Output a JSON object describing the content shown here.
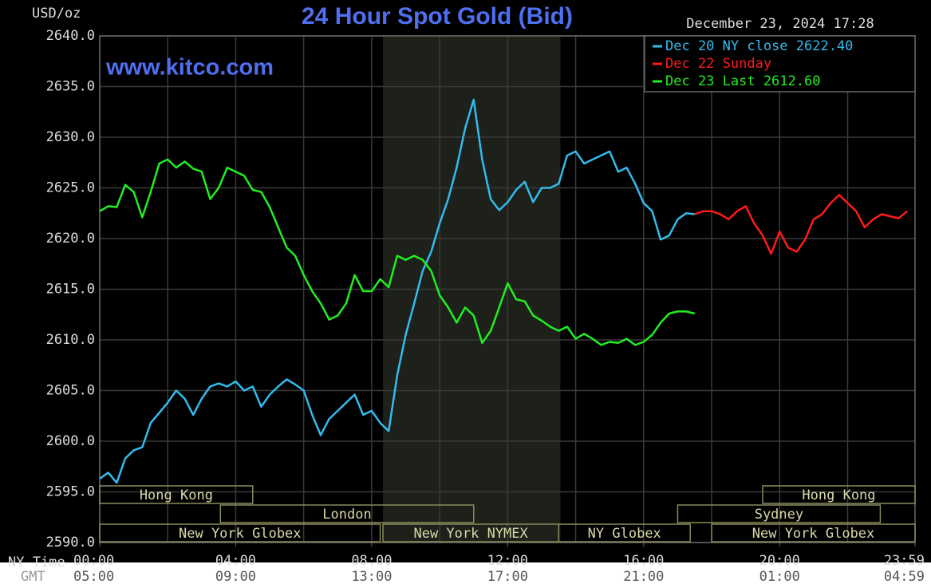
{
  "chart_data": {
    "type": "line",
    "title": "24 Hour Spot Gold (Bid)",
    "y_label": "USD/oz",
    "watermark": "www.kitco.com",
    "timestamp": "December 23, 2024 17:28",
    "x_label": "NY Time",
    "x2_label": "GMT",
    "xlim": [
      0,
      23.983
    ],
    "ylim": [
      2590,
      2640
    ],
    "yticks": [
      {
        "value": 2590,
        "label": "2590.0"
      },
      {
        "value": 2595,
        "label": "2595.0"
      },
      {
        "value": 2600,
        "label": "2600.0"
      },
      {
        "value": 2605,
        "label": "2605.0"
      },
      {
        "value": 2610,
        "label": "2610.0"
      },
      {
        "value": 2615,
        "label": "2615.0"
      },
      {
        "value": 2620,
        "label": "2620.0"
      },
      {
        "value": 2625,
        "label": "2625.0"
      },
      {
        "value": 2630,
        "label": "2630.0"
      },
      {
        "value": 2635,
        "label": "2635.0"
      },
      {
        "value": 2640,
        "label": "2640.0"
      }
    ],
    "xticks": [
      {
        "value": 0,
        "label": "00:00"
      },
      {
        "value": 4,
        "label": "04:00"
      },
      {
        "value": 8,
        "label": "08:00"
      },
      {
        "value": 12,
        "label": "12:00"
      },
      {
        "value": 16,
        "label": "16:00"
      },
      {
        "value": 20,
        "label": "20:00"
      },
      {
        "value": 23.983,
        "label": "23:59"
      }
    ],
    "x2_labels": [
      "05:00",
      "09:00",
      "13:00",
      "17:00",
      "21:00",
      "01:00",
      "04:59"
    ],
    "xgrid": [
      0,
      2,
      4,
      6,
      8,
      10,
      12,
      14,
      16,
      18,
      20,
      22
    ],
    "grid": true,
    "shaded": [
      8.333,
      13.55
    ],
    "session_rows": [
      [
        {
          "label": "Hong Kong",
          "start": 0,
          "end": 4.5
        },
        {
          "label": "Hong Kong",
          "start": 19.5,
          "end": 23.983
        }
      ],
      [
        {
          "label": "London",
          "start": 3.55,
          "end": 11
        },
        {
          "label": "Sydney",
          "start": 17,
          "end": 22.96
        }
      ],
      [
        {
          "label": "New York Globex",
          "start": 0,
          "end": 8.25
        },
        {
          "label": "New York NYMEX",
          "start": 8.33,
          "end": 13.5
        },
        {
          "label": "NY Globex",
          "start": 13.5,
          "end": 17.37
        },
        {
          "label": "New York Globex",
          "start": 18,
          "end": 23.983
        }
      ]
    ],
    "x": [
      0,
      0.25,
      0.5,
      0.75,
      1,
      1.25,
      1.5,
      1.75,
      2,
      2.25,
      2.5,
      2.75,
      3,
      3.25,
      3.5,
      3.75,
      4,
      4.25,
      4.5,
      4.75,
      5,
      5.25,
      5.5,
      5.75,
      6,
      6.25,
      6.5,
      6.75,
      7,
      7.25,
      7.5,
      7.75,
      8,
      8.25,
      8.5,
      8.75,
      9,
      9.25,
      9.5,
      9.75,
      10,
      10.25,
      10.5,
      10.75,
      11,
      11.25,
      11.5,
      11.75,
      12,
      12.25,
      12.5,
      12.75,
      13,
      13.25,
      13.5,
      13.75,
      14,
      14.25,
      14.5,
      14.75,
      15,
      15.25,
      15.5,
      15.75,
      16,
      16.25,
      16.5,
      16.75,
      17,
      17.25,
      17.5,
      17.75,
      18,
      18.25,
      18.5,
      18.75,
      19,
      19.25,
      19.5,
      19.75,
      20,
      20.25,
      20.5,
      20.75,
      21,
      21.25,
      21.5,
      21.75,
      22,
      22.25,
      22.5,
      22.75,
      23,
      23.25,
      23.5,
      23.75
    ],
    "series": [
      {
        "name": "Dec 20 NY close 2622.40",
        "color": "#33bbee",
        "values": [
          2596.3,
          2596.9,
          2595.9,
          2598.3,
          2599.1,
          2599.4,
          2601.8,
          2602.8,
          2603.8,
          2605.0,
          2604.2,
          2602.6,
          2604.2,
          2605.4,
          2605.7,
          2605.4,
          2605.9,
          2605.0,
          2605.4,
          2603.4,
          2604.6,
          2605.4,
          2606.1,
          2605.6,
          2605.0,
          2602.6,
          2600.6,
          2602.2,
          2603.0,
          2603.8,
          2604.6,
          2602.6,
          2603.0,
          2601.8,
          2601.0,
          2606.5,
          2610.5,
          2613.6,
          2616.8,
          2618.7,
          2621.5,
          2623.9,
          2627.0,
          2630.9,
          2633.7,
          2627.8,
          2623.9,
          2622.8,
          2623.6,
          2624.8,
          2625.6,
          2623.6,
          2625.0,
          2625.0,
          2625.4,
          2628.2,
          2628.6,
          2627.4,
          2627.8,
          2628.2,
          2628.6,
          2626.6,
          2627.0,
          2625.4,
          2623.5,
          2622.7,
          2619.9,
          2620.3,
          2621.9,
          2622.5,
          2622.4,
          null,
          null,
          null,
          null,
          null,
          null,
          null,
          null,
          null,
          null,
          null,
          null,
          null,
          null,
          null,
          null,
          null,
          null,
          null,
          null,
          null,
          null,
          null,
          null,
          null
        ]
      },
      {
        "name": "Dec 22 Sunday",
        "color": "#ff1a1a",
        "values": [
          null,
          null,
          null,
          null,
          null,
          null,
          null,
          null,
          null,
          null,
          null,
          null,
          null,
          null,
          null,
          null,
          null,
          null,
          null,
          null,
          null,
          null,
          null,
          null,
          null,
          null,
          null,
          null,
          null,
          null,
          null,
          null,
          null,
          null,
          null,
          null,
          null,
          null,
          null,
          null,
          null,
          null,
          null,
          null,
          null,
          null,
          null,
          null,
          null,
          null,
          null,
          null,
          null,
          null,
          null,
          null,
          null,
          null,
          null,
          null,
          null,
          null,
          null,
          null,
          null,
          null,
          null,
          null,
          null,
          null,
          2622.4,
          2622.7,
          2622.7,
          2622.4,
          2621.9,
          2622.7,
          2623.2,
          2621.5,
          2620.3,
          2618.5,
          2620.7,
          2619.1,
          2618.7,
          2619.9,
          2621.9,
          2622.4,
          2623.5,
          2624.3,
          2623.5,
          2622.7,
          2621.1,
          2621.9,
          2622.4,
          2622.2,
          2622.0,
          2622.7
        ]
      },
      {
        "name": "Dec 23 Last 2612.60",
        "color": "#22ee22",
        "values": [
          2622.7,
          2623.2,
          2623.1,
          2625.3,
          2624.6,
          2622.1,
          2624.6,
          2627.4,
          2627.8,
          2627.0,
          2627.6,
          2626.9,
          2626.6,
          2623.9,
          2625.0,
          2627.0,
          2626.6,
          2626.2,
          2624.8,
          2624.6,
          2623.1,
          2621.1,
          2619.1,
          2618.3,
          2616.4,
          2614.8,
          2613.6,
          2612.0,
          2612.4,
          2613.6,
          2616.4,
          2614.8,
          2614.8,
          2616.0,
          2615.2,
          2618.3,
          2617.9,
          2618.3,
          2617.9,
          2616.8,
          2614.4,
          2613.2,
          2611.7,
          2613.2,
          2612.4,
          2609.7,
          2610.9,
          2613.2,
          2615.6,
          2614.0,
          2613.8,
          2612.4,
          2611.9,
          2611.3,
          2610.9,
          2611.3,
          2610.1,
          2610.6,
          2610.1,
          2609.5,
          2609.8,
          2609.7,
          2610.1,
          2609.5,
          2609.8,
          2610.5,
          2611.7,
          2612.6,
          2612.8,
          2612.8,
          2612.6,
          null,
          null,
          null,
          null,
          null,
          null,
          null,
          null,
          null,
          null,
          null,
          null,
          null,
          null,
          null,
          null,
          null,
          null,
          null,
          null,
          null,
          null,
          null,
          null,
          null
        ]
      }
    ]
  }
}
